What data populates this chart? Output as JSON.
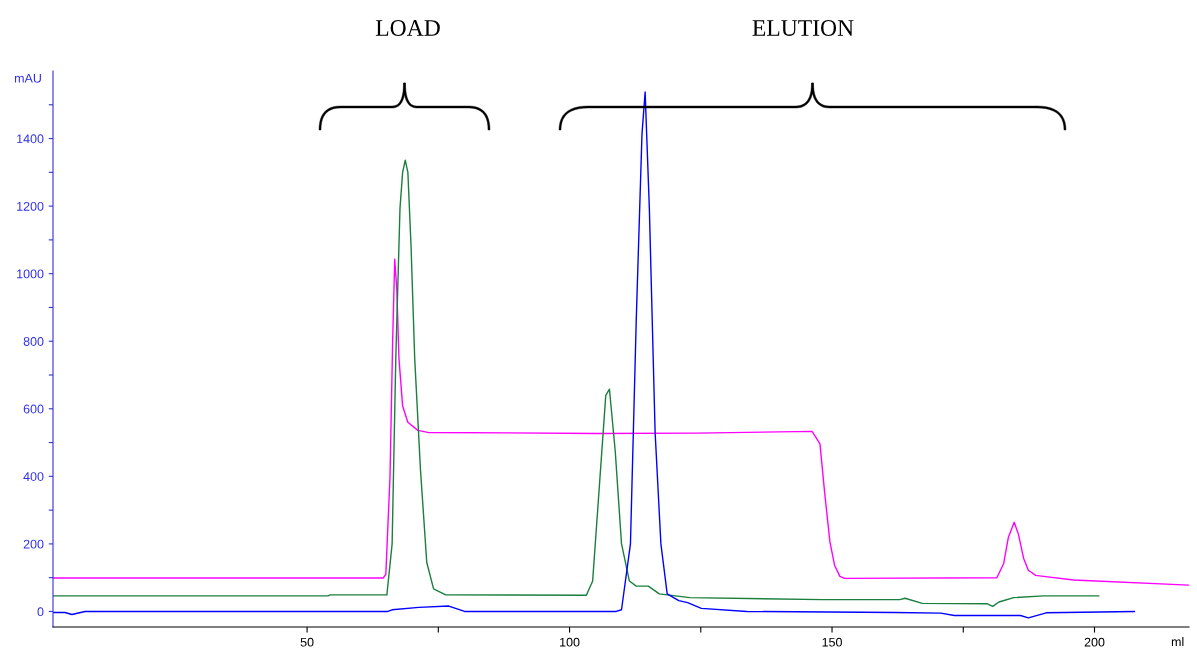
{
  "chart_data": {
    "type": "line",
    "xlabel": "ml",
    "ylabel": "mAU",
    "xlim": [
      1.6,
      218
    ],
    "ylim": [
      -46,
      1600
    ],
    "xticks": [
      {
        "value": 50,
        "label": "50"
      },
      {
        "value": 75,
        "label": null
      },
      {
        "value": 100,
        "label": "100"
      },
      {
        "value": 125,
        "label": null
      },
      {
        "value": 150,
        "label": "150"
      },
      {
        "value": 175,
        "label": null
      },
      {
        "value": 200,
        "label": "200"
      }
    ],
    "yticks": [
      0,
      {
        "value": 100,
        "label": null
      },
      200,
      {
        "value": 300,
        "label": null
      },
      400,
      {
        "value": 500,
        "label": null
      },
      600,
      {
        "value": 700,
        "label": null
      },
      800,
      {
        "value": 900,
        "label": null
      },
      1000,
      {
        "value": 1100,
        "label": null
      },
      1200,
      {
        "value": 1300,
        "label": null
      },
      1400,
      {
        "value": 1500,
        "label": null
      }
    ],
    "grid": false,
    "marker": "none",
    "line_style": "solid",
    "annotations": [
      "LOAD",
      "ELUTION"
    ],
    "series": [
      {
        "color": "#ff00ff",
        "x": [
          1.6,
          64.5,
          65.0,
          65.8,
          66.3,
          66.7,
          67.1,
          67.5,
          68.2,
          69.2,
          71.1,
          73.0,
          105.1,
          124.1,
          146.2,
          147.7,
          148.6,
          149.6,
          150.5,
          151.5,
          152.4,
          181.4,
          182.7,
          183.6,
          184.7,
          185.5,
          186.5,
          187.4,
          188.8,
          190.3,
          196.0,
          218
        ],
        "values": [
          99,
          99,
          110,
          400,
          800,
          1043,
          950,
          750,
          608,
          560,
          536,
          530,
          527,
          528,
          533,
          496,
          351,
          206,
          136,
          104,
          98,
          100,
          142,
          220,
          264,
          229,
          157,
          122,
          107,
          104,
          93,
          78
        ]
      },
      {
        "color": "#1a7f3c",
        "x": [
          1.6,
          54.0,
          54.4,
          65.2,
          66.2,
          66.9,
          67.7,
          68.2,
          68.7,
          69.2,
          69.8,
          70.5,
          71.6,
          72.8,
          74.1,
          76.4,
          103.2,
          104.4,
          105.9,
          106.9,
          107.6,
          108.7,
          109.9,
          111.4,
          112.7,
          115.0,
          117.1,
          122.9,
          148.3,
          162.9,
          163.9,
          167.2,
          179.5,
          180.6,
          181.8,
          184.6,
          190.3,
          200.8
        ],
        "values": [
          46,
          46,
          49,
          49,
          200,
          750,
          1194,
          1300,
          1336,
          1300,
          1084,
          750,
          420,
          145,
          67,
          49,
          48,
          90,
          420,
          640,
          658,
          475,
          200,
          90,
          75,
          75,
          52,
          41,
          35,
          35,
          39,
          24,
          23,
          15,
          28,
          41,
          46,
          46
        ]
      },
      {
        "color": "#0000ff",
        "x": [
          1.6,
          3.9,
          5.2,
          7.7,
          65.4,
          66.2,
          71.3,
          77.0,
          80.0,
          108.9,
          109.9,
          111.6,
          112.7,
          113.8,
          114.4,
          115.2,
          116.3,
          117.4,
          118.6,
          120.8,
          122.5,
          125.1,
          133.8,
          161.9,
          170.7,
          173.3,
          185.9,
          187.4,
          190.8,
          207.6
        ],
        "values": [
          -3,
          -3,
          -9,
          0,
          0,
          5,
          12,
          16,
          0,
          0,
          5,
          200,
          860,
          1414,
          1538,
          1194,
          530,
          200,
          52,
          32,
          26,
          9,
          0,
          -3,
          -5,
          -12,
          -12,
          -19,
          -4,
          0
        ]
      }
    ]
  }
}
